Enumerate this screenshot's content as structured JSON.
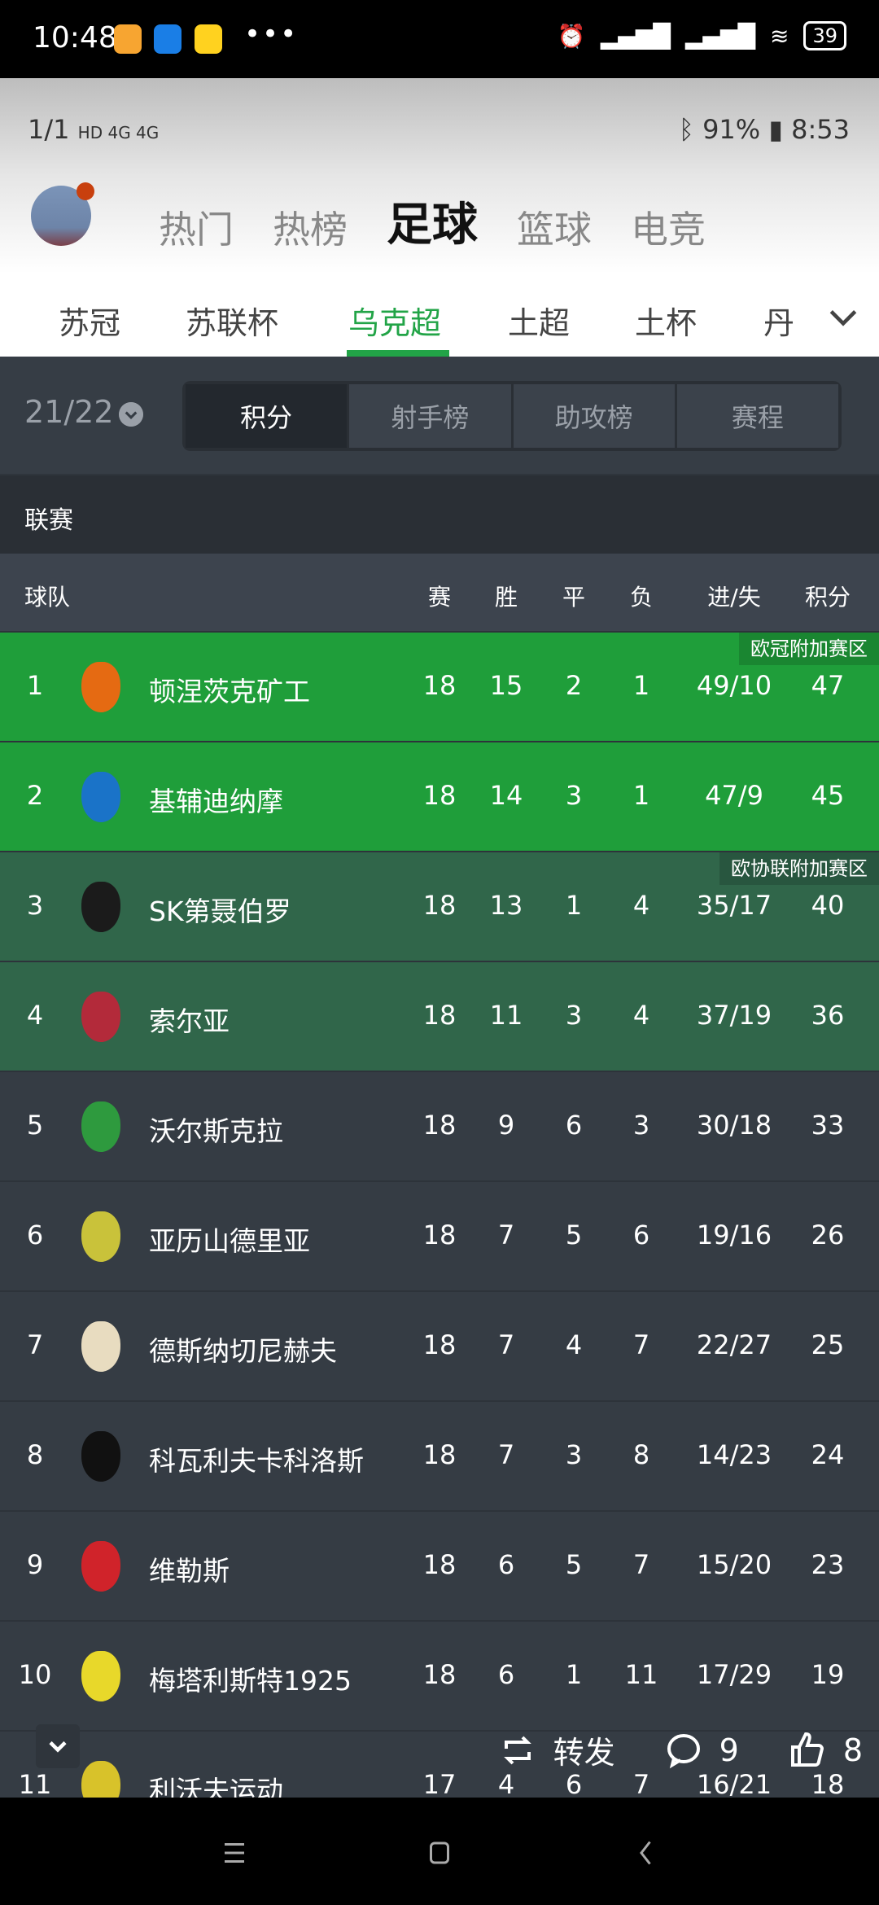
{
  "system_status": {
    "time": "10:48",
    "battery": "39",
    "more": "•••",
    "apps": [
      "notes-app-icon",
      "alipay-app-icon",
      "xianyu-app-icon"
    ]
  },
  "inner_status": {
    "page_counter": "1/1",
    "network": "HD 4G 4G",
    "battery_percent": "91%",
    "time": "8:53"
  },
  "nav_tabs": [
    {
      "label": "热门"
    },
    {
      "label": "热榜"
    },
    {
      "label": "足球",
      "active": true
    },
    {
      "label": "篮球"
    },
    {
      "label": "电竞"
    }
  ],
  "league_tabs": [
    {
      "label": "苏冠"
    },
    {
      "label": "苏联杯"
    },
    {
      "label": "乌克超",
      "active": true
    },
    {
      "label": "土超"
    },
    {
      "label": "土杯"
    },
    {
      "label": "丹"
    }
  ],
  "season": "21/22",
  "segments": [
    {
      "label": "积分",
      "active": true
    },
    {
      "label": "射手榜"
    },
    {
      "label": "助攻榜"
    },
    {
      "label": "赛程"
    }
  ],
  "section_title": "联赛",
  "columns": {
    "team": "球队",
    "played": "赛",
    "won": "胜",
    "drawn": "平",
    "lost": "负",
    "goals": "进/失",
    "points": "积分"
  },
  "colors": {
    "accent": "#22a447",
    "ucl_zone": "#1f9e3a",
    "uecl_zone": "#30664a",
    "row_bg": "#353c44"
  },
  "standings": [
    {
      "rank": "1",
      "team": "顿涅茨克矿工",
      "p": "18",
      "w": "15",
      "d": "2",
      "l": "1",
      "gf_ga": "49/10",
      "pts": "47",
      "zone": "ucl",
      "zone_label": "欧冠附加赛区",
      "logo_color": "#e56a12"
    },
    {
      "rank": "2",
      "team": "基辅迪纳摩",
      "p": "18",
      "w": "14",
      "d": "3",
      "l": "1",
      "gf_ga": "47/9",
      "pts": "45",
      "zone": "ucl",
      "logo_color": "#1a73c8"
    },
    {
      "rank": "3",
      "team": "SK第聂伯罗",
      "p": "18",
      "w": "13",
      "d": "1",
      "l": "4",
      "gf_ga": "35/17",
      "pts": "40",
      "zone": "uecl",
      "zone_label": "欧协联附加赛区",
      "logo_color": "#1b1b1b"
    },
    {
      "rank": "4",
      "team": "索尔亚",
      "p": "18",
      "w": "11",
      "d": "3",
      "l": "4",
      "gf_ga": "37/19",
      "pts": "36",
      "zone": "uecl",
      "logo_color": "#b32a3a"
    },
    {
      "rank": "5",
      "team": "沃尔斯克拉",
      "p": "18",
      "w": "9",
      "d": "6",
      "l": "3",
      "gf_ga": "30/18",
      "pts": "33",
      "logo_color": "#2e9a3e"
    },
    {
      "rank": "6",
      "team": "亚历山德里亚",
      "p": "18",
      "w": "7",
      "d": "5",
      "l": "6",
      "gf_ga": "19/16",
      "pts": "26",
      "logo_color": "#c9c23a"
    },
    {
      "rank": "7",
      "team": "德斯纳切尼赫夫",
      "p": "18",
      "w": "7",
      "d": "4",
      "l": "7",
      "gf_ga": "22/27",
      "pts": "25",
      "logo_color": "#e8dcc0"
    },
    {
      "rank": "8",
      "team": "科瓦利夫卡科洛斯",
      "p": "18",
      "w": "7",
      "d": "3",
      "l": "8",
      "gf_ga": "14/23",
      "pts": "24",
      "logo_color": "#111111"
    },
    {
      "rank": "9",
      "team": "维勒斯",
      "p": "18",
      "w": "6",
      "d": "5",
      "l": "7",
      "gf_ga": "15/20",
      "pts": "23",
      "logo_color": "#d0232a"
    },
    {
      "rank": "10",
      "team": "梅塔利斯特1925",
      "p": "18",
      "w": "6",
      "d": "1",
      "l": "11",
      "gf_ga": "17/29",
      "pts": "19",
      "logo_color": "#e8d82a"
    },
    {
      "rank": "11",
      "team": "利沃夫运动",
      "p": "17",
      "w": "4",
      "d": "6",
      "l": "7",
      "gf_ga": "16/21",
      "pts": "18",
      "logo_color": "#d8c22a"
    }
  ],
  "actions": {
    "repost": "转发",
    "comments": "9",
    "likes": "8"
  }
}
